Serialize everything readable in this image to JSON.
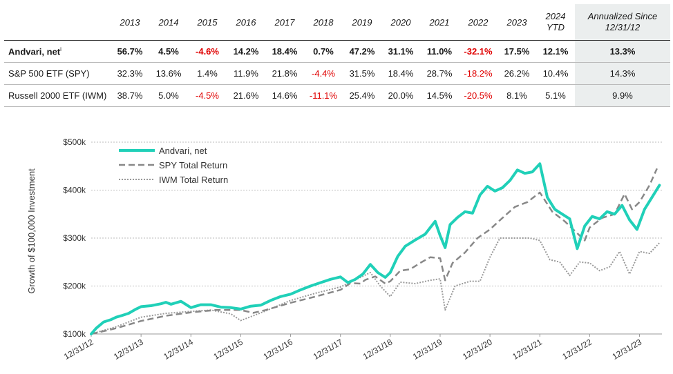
{
  "table": {
    "headers": [
      "2013",
      "2014",
      "2015",
      "2016",
      "2017",
      "2018",
      "2019",
      "2020",
      "2021",
      "2022",
      "2023",
      "2024 YTD"
    ],
    "annualized_header": "Annualized Since 12/31/12",
    "rows": [
      {
        "name": "Andvari, net",
        "superscript": "i",
        "bold": true,
        "values": [
          "56.7%",
          "4.5%",
          "-4.6%",
          "14.2%",
          "18.4%",
          "0.7%",
          "47.2%",
          "31.1%",
          "11.0%",
          "-32.1%",
          "17.5%",
          "12.1%"
        ],
        "annualized": "13.3%"
      },
      {
        "name": "S&P 500 ETF (SPY)",
        "superscript": "",
        "bold": false,
        "values": [
          "32.3%",
          "13.6%",
          "1.4%",
          "11.9%",
          "21.8%",
          "-4.4%",
          "31.5%",
          "18.4%",
          "28.7%",
          "-18.2%",
          "26.2%",
          "10.4%"
        ],
        "annualized": "14.3%"
      },
      {
        "name": "Russell 2000 ETF (IWM)",
        "superscript": "",
        "bold": false,
        "values": [
          "38.7%",
          "5.0%",
          "-4.5%",
          "21.6%",
          "14.6%",
          "-11.1%",
          "25.4%",
          "20.0%",
          "14.5%",
          "-20.5%",
          "8.1%",
          "5.1%"
        ],
        "annualized": "9.9%"
      }
    ],
    "negative_color": "#e00000"
  },
  "chart_data": {
    "type": "line",
    "ylabel": "Growth of $100,000 Investment",
    "ylim": [
      100000,
      500000
    ],
    "yticks": [
      100000,
      200000,
      300000,
      400000,
      500000
    ],
    "ytick_labels": [
      "$100k",
      "$200k",
      "$300k",
      "$400k",
      "$500k"
    ],
    "xlim": [
      0,
      11.45
    ],
    "xticks": [
      0,
      1,
      2,
      3,
      4,
      5,
      6,
      7,
      8,
      9,
      10,
      11
    ],
    "xtick_labels": [
      "12/31/12",
      "12/31/13",
      "12/31/14",
      "12/31/15",
      "12/31/16",
      "12/31/17",
      "12/31/18",
      "12/31/19",
      "12/31/20",
      "12/31/21",
      "12/31/22",
      "12/31/23"
    ],
    "legend_position": "top-left",
    "grid": "horizontal dotted",
    "series": [
      {
        "name": "Andvari, net",
        "color": "#20d0b8",
        "style": "solid",
        "x": [
          0,
          0.1,
          0.25,
          0.4,
          0.5,
          0.6,
          0.75,
          0.9,
          1.0,
          1.2,
          1.4,
          1.5,
          1.6,
          1.8,
          2.0,
          2.2,
          2.4,
          2.6,
          2.8,
          3.0,
          3.2,
          3.4,
          3.6,
          3.8,
          4.0,
          4.2,
          4.4,
          4.6,
          4.8,
          5.0,
          5.15,
          5.3,
          5.45,
          5.6,
          5.75,
          5.9,
          6.0,
          6.15,
          6.3,
          6.5,
          6.7,
          6.9,
          7.0,
          7.1,
          7.2,
          7.35,
          7.5,
          7.65,
          7.8,
          7.95,
          8.1,
          8.25,
          8.4,
          8.55,
          8.7,
          8.85,
          9.0,
          9.15,
          9.3,
          9.45,
          9.6,
          9.75,
          9.9,
          10.05,
          10.2,
          10.35,
          10.5,
          10.65,
          10.8,
          10.95,
          11.1,
          11.25,
          11.4
        ],
        "y": [
          100000,
          112000,
          125000,
          130000,
          135000,
          138000,
          143000,
          152000,
          157000,
          159000,
          163000,
          166000,
          162000,
          168000,
          155000,
          161000,
          161000,
          156000,
          155000,
          152000,
          158000,
          160000,
          170000,
          178000,
          183000,
          192000,
          200000,
          207000,
          214000,
          219000,
          207000,
          214000,
          225000,
          245000,
          228000,
          218000,
          228000,
          262000,
          283000,
          296000,
          308000,
          335000,
          305000,
          280000,
          328000,
          343000,
          355000,
          352000,
          390000,
          408000,
          398000,
          405000,
          420000,
          442000,
          435000,
          438000,
          455000,
          385000,
          360000,
          350000,
          340000,
          278000,
          325000,
          345000,
          340000,
          355000,
          350000,
          368000,
          338000,
          318000,
          360000,
          385000,
          410000
        ]
      },
      {
        "name": "SPY Total Return",
        "color": "#888888",
        "style": "dashed",
        "x": [
          0,
          0.5,
          1.0,
          1.5,
          2.0,
          2.5,
          3.0,
          3.25,
          3.5,
          4.0,
          4.5,
          5.0,
          5.2,
          5.4,
          5.5,
          5.7,
          5.9,
          6.0,
          6.2,
          6.4,
          6.6,
          6.8,
          7.0,
          7.1,
          7.25,
          7.5,
          7.75,
          8.0,
          8.25,
          8.5,
          8.75,
          9.0,
          9.25,
          9.5,
          9.75,
          9.9,
          10.0,
          10.25,
          10.5,
          10.7,
          10.85,
          11.0,
          11.2,
          11.35
        ],
        "y": [
          100000,
          112000,
          127000,
          138000,
          145000,
          150000,
          150000,
          144000,
          150000,
          165000,
          178000,
          192000,
          206000,
          205000,
          213000,
          220000,
          205000,
          210000,
          232000,
          235000,
          248000,
          260000,
          258000,
          212000,
          248000,
          270000,
          300000,
          318000,
          342000,
          365000,
          375000,
          395000,
          355000,
          335000,
          310000,
          295000,
          322000,
          342000,
          350000,
          392000,
          360000,
          375000,
          410000,
          445000
        ]
      },
      {
        "name": "IWM Total Return",
        "color": "#999999",
        "style": "dotted",
        "x": [
          0,
          0.5,
          1.0,
          1.5,
          2.0,
          2.4,
          2.8,
          3.0,
          3.25,
          3.5,
          4.0,
          4.5,
          5.0,
          5.4,
          5.6,
          5.8,
          6.0,
          6.2,
          6.5,
          6.8,
          7.0,
          7.1,
          7.3,
          7.6,
          7.8,
          8.0,
          8.2,
          8.5,
          8.8,
          9.0,
          9.2,
          9.4,
          9.6,
          9.8,
          10.0,
          10.2,
          10.4,
          10.6,
          10.8,
          11.0,
          11.2,
          11.4
        ],
        "y": [
          100000,
          115000,
          135000,
          143000,
          147000,
          150000,
          142000,
          128000,
          138000,
          148000,
          170000,
          185000,
          198000,
          218000,
          228000,
          200000,
          178000,
          208000,
          205000,
          212000,
          215000,
          150000,
          200000,
          210000,
          210000,
          260000,
          300000,
          300000,
          300000,
          295000,
          255000,
          250000,
          222000,
          250000,
          248000,
          232000,
          240000,
          272000,
          225000,
          272000,
          268000,
          290000
        ]
      }
    ]
  }
}
